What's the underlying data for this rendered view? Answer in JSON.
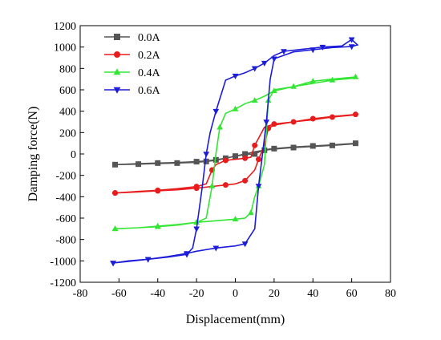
{
  "chart_data": {
    "type": "line",
    "title": "",
    "xlabel": "Displacement(mm)",
    "ylabel": "Damping force(N)",
    "xlim": [
      -80,
      80
    ],
    "ylim": [
      -1200,
      1200
    ],
    "xticks": [
      -80,
      -60,
      -40,
      -20,
      0,
      20,
      40,
      60,
      80
    ],
    "yticks": [
      -1200,
      -1000,
      -800,
      -600,
      -400,
      -200,
      0,
      200,
      400,
      600,
      800,
      1000,
      1200
    ],
    "grid": false,
    "legend_position": "top-left",
    "series": [
      {
        "name": "0.0A",
        "color": "#555555",
        "marker": "square",
        "points": [
          [
            -62,
            -100
          ],
          [
            -50,
            -90
          ],
          [
            -40,
            -85
          ],
          [
            -30,
            -80
          ],
          [
            -20,
            -72
          ],
          [
            -15,
            -65
          ],
          [
            -10,
            -55
          ],
          [
            -5,
            -40
          ],
          [
            0,
            -20
          ],
          [
            5,
            -5
          ],
          [
            10,
            0
          ],
          [
            15,
            40
          ],
          [
            20,
            50
          ],
          [
            30,
            65
          ],
          [
            40,
            75
          ],
          [
            50,
            85
          ],
          [
            62,
            100
          ],
          [
            62,
            95
          ],
          [
            50,
            80
          ],
          [
            40,
            70
          ],
          [
            30,
            60
          ],
          [
            20,
            45
          ],
          [
            15,
            35
          ],
          [
            10,
            20
          ],
          [
            5,
            0
          ],
          [
            0,
            -20
          ],
          [
            -5,
            -40
          ],
          [
            -10,
            -60
          ],
          [
            -15,
            -70
          ],
          [
            -20,
            -78
          ],
          [
            -30,
            -85
          ],
          [
            -40,
            -90
          ],
          [
            -50,
            -95
          ],
          [
            -62,
            -100
          ]
        ]
      },
      {
        "name": "0.2A",
        "color": "#e81c1c",
        "marker": "circle",
        "points": [
          [
            -62,
            -365
          ],
          [
            -50,
            -350
          ],
          [
            -40,
            -340
          ],
          [
            -30,
            -325
          ],
          [
            -20,
            -305
          ],
          [
            -15,
            -280
          ],
          [
            -12,
            -150
          ],
          [
            -10,
            -100
          ],
          [
            -5,
            -60
          ],
          [
            0,
            -50
          ],
          [
            5,
            -40
          ],
          [
            8,
            -30
          ],
          [
            10,
            80
          ],
          [
            15,
            250
          ],
          [
            20,
            280
          ],
          [
            30,
            300
          ],
          [
            40,
            330
          ],
          [
            50,
            350
          ],
          [
            62,
            370
          ],
          [
            62,
            365
          ],
          [
            50,
            345
          ],
          [
            40,
            320
          ],
          [
            30,
            300
          ],
          [
            20,
            270
          ],
          [
            17,
            240
          ],
          [
            15,
            80
          ],
          [
            12,
            -50
          ],
          [
            10,
            -150
          ],
          [
            5,
            -250
          ],
          [
            0,
            -280
          ],
          [
            -5,
            -290
          ],
          [
            -10,
            -300
          ],
          [
            -20,
            -320
          ],
          [
            -30,
            -335
          ],
          [
            -40,
            -345
          ],
          [
            -50,
            -355
          ],
          [
            -62,
            -365
          ]
        ]
      },
      {
        "name": "0.4A",
        "color": "#33e633",
        "marker": "triangle-up",
        "points": [
          [
            -62,
            -700
          ],
          [
            -50,
            -690
          ],
          [
            -40,
            -680
          ],
          [
            -30,
            -665
          ],
          [
            -20,
            -640
          ],
          [
            -15,
            -600
          ],
          [
            -12,
            -300
          ],
          [
            -10,
            0
          ],
          [
            -8,
            250
          ],
          [
            -5,
            380
          ],
          [
            0,
            420
          ],
          [
            5,
            470
          ],
          [
            10,
            500
          ],
          [
            15,
            540
          ],
          [
            20,
            590
          ],
          [
            30,
            630
          ],
          [
            40,
            680
          ],
          [
            50,
            700
          ],
          [
            62,
            720
          ],
          [
            62,
            710
          ],
          [
            50,
            690
          ],
          [
            40,
            660
          ],
          [
            30,
            630
          ],
          [
            20,
            600
          ],
          [
            17,
            500
          ],
          [
            15,
            -100
          ],
          [
            12,
            -300
          ],
          [
            10,
            -400
          ],
          [
            8,
            -550
          ],
          [
            5,
            -600
          ],
          [
            0,
            -610
          ],
          [
            -10,
            -625
          ],
          [
            -20,
            -640
          ],
          [
            -30,
            -660
          ],
          [
            -40,
            -675
          ],
          [
            -50,
            -690
          ],
          [
            -62,
            -700
          ]
        ]
      },
      {
        "name": "0.6A",
        "color": "#1c1cd9",
        "marker": "triangle-down",
        "points": [
          [
            -63,
            -1020
          ],
          [
            -55,
            -1000
          ],
          [
            -45,
            -985
          ],
          [
            -35,
            -965
          ],
          [
            -25,
            -940
          ],
          [
            -22,
            -880
          ],
          [
            -20,
            -700
          ],
          [
            -17,
            -300
          ],
          [
            -15,
            0
          ],
          [
            -13,
            200
          ],
          [
            -10,
            400
          ],
          [
            -5,
            690
          ],
          [
            0,
            730
          ],
          [
            5,
            760
          ],
          [
            10,
            800
          ],
          [
            12,
            820
          ],
          [
            15,
            850
          ],
          [
            20,
            920
          ],
          [
            25,
            960
          ],
          [
            35,
            980
          ],
          [
            45,
            1000
          ],
          [
            55,
            1010
          ],
          [
            60,
            1070
          ],
          [
            63,
            1020
          ],
          [
            60,
            1005
          ],
          [
            50,
            995
          ],
          [
            40,
            975
          ],
          [
            30,
            955
          ],
          [
            20,
            890
          ],
          [
            18,
            700
          ],
          [
            16,
            300
          ],
          [
            14,
            0
          ],
          [
            12,
            -300
          ],
          [
            10,
            -700
          ],
          [
            5,
            -840
          ],
          [
            0,
            -860
          ],
          [
            -10,
            -880
          ],
          [
            -20,
            -910
          ],
          [
            -25,
            -930
          ],
          [
            -35,
            -960
          ],
          [
            -45,
            -985
          ],
          [
            -55,
            -1005
          ],
          [
            -63,
            -1020
          ]
        ]
      }
    ]
  }
}
